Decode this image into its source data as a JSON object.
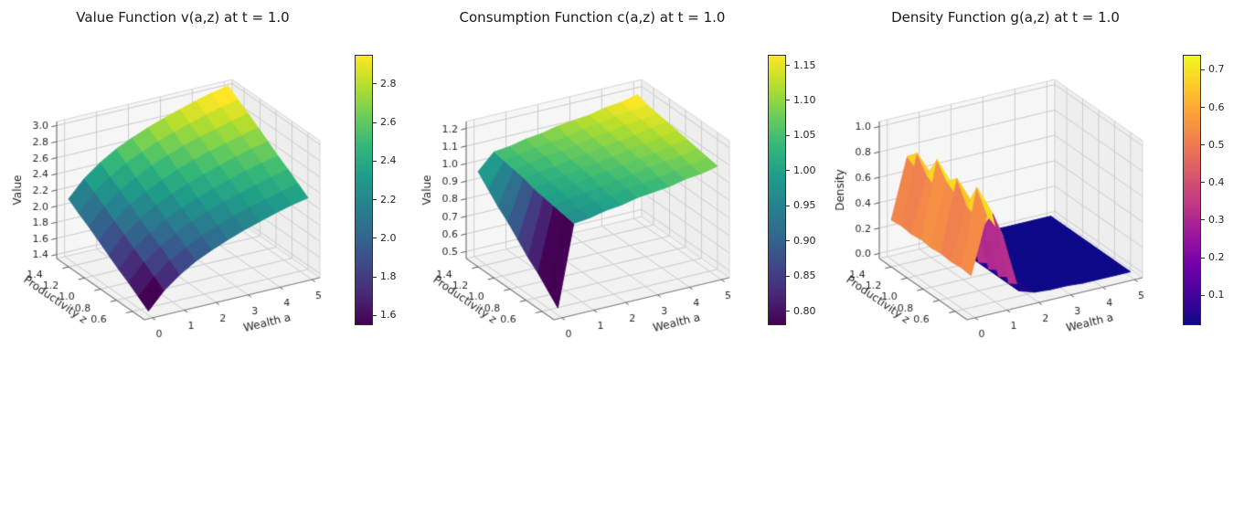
{
  "figure": {
    "background": "#ffffff"
  },
  "colormaps": {
    "viridis": [
      "#440154",
      "#482878",
      "#3e4989",
      "#31688e",
      "#26828e",
      "#1f9e89",
      "#35b779",
      "#6dcd59",
      "#b4de2c",
      "#fde725"
    ],
    "plasma": [
      "#0d0887",
      "#46039f",
      "#7201a8",
      "#9c179e",
      "#bd3786",
      "#d8576b",
      "#ed7953",
      "#fb9f3a",
      "#fdca26",
      "#f0f921"
    ]
  },
  "chart_data": [
    {
      "type": "surface",
      "title": "Value Function v(a,z) at t = 1.0",
      "xlabel": "Wealth a",
      "ylabel": "Productivity z",
      "zlabel": "Value",
      "colormap": "viridis",
      "grid": true,
      "xlim": [
        -0.25,
        5.25
      ],
      "ylim": [
        0.45,
        1.55
      ],
      "zlim": [
        1.35,
        3.05
      ],
      "xticks": {
        "values": [
          0,
          1,
          2,
          3,
          4,
          5
        ],
        "labels": [
          "0",
          "1",
          "2",
          "3",
          "4",
          "5"
        ]
      },
      "yticks": {
        "values": [
          0.6,
          0.8,
          1.0,
          1.2,
          1.4
        ],
        "labels": [
          "0.6",
          "0.8",
          "1.0",
          "1.2",
          "1.4"
        ]
      },
      "zticks": {
        "values": [
          1.4,
          1.6,
          1.8,
          2.0,
          2.2,
          2.4,
          2.6,
          2.8,
          3.0
        ],
        "labels": [
          "1.4",
          "1.6",
          "1.8",
          "2.0",
          "2.2",
          "2.4",
          "2.6",
          "2.8",
          "3.0"
        ]
      },
      "colorbar": {
        "vmin": 1.55,
        "vmax": 2.95,
        "ticks": [
          {
            "value": 1.6,
            "label": "1.6"
          },
          {
            "value": 1.8,
            "label": "1.8"
          },
          {
            "value": 2.0,
            "label": "2.0"
          },
          {
            "value": 2.2,
            "label": "2.2"
          },
          {
            "value": 2.4,
            "label": "2.4"
          },
          {
            "value": 2.6,
            "label": "2.6"
          },
          {
            "value": 2.8,
            "label": "2.8"
          }
        ]
      },
      "surface": {
        "a": [
          0,
          0.5,
          1,
          1.5,
          2,
          2.5,
          3,
          3.5,
          4,
          4.5,
          5
        ],
        "z": [
          0.5,
          0.625,
          0.75,
          0.875,
          1.0,
          1.125,
          1.25,
          1.375,
          1.5
        ],
        "values": [
          [
            1.4,
            1.61,
            1.76,
            1.88,
            1.97,
            2.05,
            2.12,
            2.18,
            2.24,
            2.29,
            2.33
          ],
          [
            1.49,
            1.7,
            1.85,
            1.96,
            2.06,
            2.14,
            2.21,
            2.27,
            2.32,
            2.37,
            2.42
          ],
          [
            1.58,
            1.79,
            1.94,
            2.05,
            2.15,
            2.23,
            2.3,
            2.36,
            2.41,
            2.46,
            2.51
          ],
          [
            1.66,
            1.87,
            2.02,
            2.14,
            2.23,
            2.31,
            2.38,
            2.44,
            2.5,
            2.55,
            2.59
          ],
          [
            1.75,
            1.96,
            2.11,
            2.23,
            2.32,
            2.4,
            2.47,
            2.53,
            2.59,
            2.64,
            2.68
          ],
          [
            1.84,
            2.05,
            2.2,
            2.31,
            2.41,
            2.49,
            2.56,
            2.62,
            2.67,
            2.72,
            2.77
          ],
          [
            1.93,
            2.14,
            2.29,
            2.4,
            2.5,
            2.58,
            2.65,
            2.71,
            2.76,
            2.81,
            2.86
          ],
          [
            2.01,
            2.22,
            2.37,
            2.49,
            2.58,
            2.66,
            2.73,
            2.79,
            2.85,
            2.9,
            2.94
          ],
          [
            2.1,
            2.31,
            2.46,
            2.58,
            2.67,
            2.75,
            2.82,
            2.88,
            2.94,
            2.99,
            3.03
          ]
        ]
      }
    },
    {
      "type": "surface",
      "title": "Consumption Function c(a,z) at t = 1.0",
      "xlabel": "Wealth a",
      "ylabel": "Productivity z",
      "zlabel": "Value",
      "colormap": "viridis",
      "grid": true,
      "xlim": [
        -0.25,
        5.25
      ],
      "ylim": [
        0.45,
        1.55
      ],
      "zlim": [
        0.46,
        1.24
      ],
      "xticks": {
        "values": [
          0,
          1,
          2,
          3,
          4,
          5
        ],
        "labels": [
          "0",
          "1",
          "2",
          "3",
          "4",
          "5"
        ]
      },
      "yticks": {
        "values": [
          0.6,
          0.8,
          1.0,
          1.2,
          1.4
        ],
        "labels": [
          "0.6",
          "0.8",
          "1.0",
          "1.2",
          "1.4"
        ]
      },
      "zticks": {
        "values": [
          0.5,
          0.6,
          0.7,
          0.8,
          0.9,
          1.0,
          1.1,
          1.2
        ],
        "labels": [
          "0.5",
          "0.6",
          "0.7",
          "0.8",
          "0.9",
          "1.0",
          "1.1",
          "1.2"
        ]
      },
      "colorbar": {
        "vmin": 0.78,
        "vmax": 1.165,
        "ticks": [
          {
            "value": 0.8,
            "label": "0.80"
          },
          {
            "value": 0.85,
            "label": "0.85"
          },
          {
            "value": 0.9,
            "label": "0.90"
          },
          {
            "value": 0.95,
            "label": "0.95"
          },
          {
            "value": 1.0,
            "label": "1.00"
          },
          {
            "value": 1.05,
            "label": "1.05"
          },
          {
            "value": 1.1,
            "label": "1.10"
          },
          {
            "value": 1.15,
            "label": "1.15"
          }
        ]
      },
      "surface": {
        "a": [
          0,
          0.5,
          1,
          1.5,
          2,
          2.5,
          3,
          3.5,
          4,
          4.5,
          5
        ],
        "z": [
          0.5,
          0.625,
          0.75,
          0.875,
          1.0,
          1.125,
          1.25,
          1.375,
          1.5
        ],
        "values": [
          [
            0.5,
            0.96,
            0.97,
            0.99,
            1.0,
            1.02,
            1.03,
            1.04,
            1.06,
            1.07,
            1.09
          ],
          [
            0.56,
            0.97,
            0.98,
            1.0,
            1.01,
            1.03,
            1.04,
            1.05,
            1.07,
            1.08,
            1.1
          ],
          [
            0.62,
            0.98,
            1.0,
            1.01,
            1.02,
            1.04,
            1.05,
            1.07,
            1.08,
            1.09,
            1.11
          ],
          [
            0.67,
            0.99,
            1.01,
            1.02,
            1.04,
            1.05,
            1.06,
            1.08,
            1.09,
            1.11,
            1.12
          ],
          [
            0.73,
            1.0,
            1.02,
            1.03,
            1.05,
            1.06,
            1.07,
            1.09,
            1.1,
            1.12,
            1.13
          ],
          [
            0.79,
            1.02,
            1.03,
            1.04,
            1.06,
            1.07,
            1.09,
            1.1,
            1.11,
            1.13,
            1.14
          ],
          [
            0.84,
            1.03,
            1.04,
            1.06,
            1.07,
            1.08,
            1.1,
            1.11,
            1.13,
            1.14,
            1.15
          ],
          [
            0.9,
            1.04,
            1.05,
            1.07,
            1.08,
            1.09,
            1.11,
            1.12,
            1.14,
            1.15,
            1.16
          ],
          [
            0.96,
            1.05,
            1.06,
            1.08,
            1.09,
            1.11,
            1.12,
            1.13,
            1.15,
            1.16,
            1.18
          ]
        ]
      }
    },
    {
      "type": "surface",
      "title": "Density Function g(a,z) at t = 1.0",
      "xlabel": "Wealth a",
      "ylabel": "Productivity z",
      "zlabel": "Density",
      "colormap": "plasma",
      "grid": true,
      "xlim": [
        -0.25,
        5.25
      ],
      "ylim": [
        0.45,
        1.55
      ],
      "zlim": [
        -0.04,
        1.04
      ],
      "xticks": {
        "values": [
          0,
          1,
          2,
          3,
          4,
          5
        ],
        "labels": [
          "0",
          "1",
          "2",
          "3",
          "4",
          "5"
        ]
      },
      "yticks": {
        "values": [
          0.6,
          0.8,
          1.0,
          1.2,
          1.4
        ],
        "labels": [
          "0.6",
          "0.8",
          "1.0",
          "1.2",
          "1.4"
        ]
      },
      "zticks": {
        "values": [
          0.0,
          0.2,
          0.4,
          0.6,
          0.8,
          1.0
        ],
        "labels": [
          "0.0",
          "0.2",
          "0.4",
          "0.6",
          "0.8",
          "1.0"
        ]
      },
      "colorbar": {
        "vmin": 0.02,
        "vmax": 0.74,
        "ticks": [
          {
            "value": 0.1,
            "label": "0.1"
          },
          {
            "value": 0.2,
            "label": "0.2"
          },
          {
            "value": 0.3,
            "label": "0.3"
          },
          {
            "value": 0.4,
            "label": "0.4"
          },
          {
            "value": 0.5,
            "label": "0.5"
          },
          {
            "value": 0.6,
            "label": "0.6"
          },
          {
            "value": 0.7,
            "label": "0.7"
          }
        ]
      },
      "surface": {
        "a": [
          0,
          0.5,
          1,
          1.5,
          2,
          2.5,
          3,
          3.5,
          4,
          4.5,
          5
        ],
        "z": [
          0.5,
          0.625,
          0.75,
          0.875,
          1.0,
          1.125,
          1.25,
          1.375,
          1.5
        ],
        "values": [
          [
            0.27,
            0.72,
            0.52,
            0.06,
            0.02,
            0.01,
            0.01,
            0.0,
            0.0,
            0.0,
            0.0
          ],
          [
            0.28,
            0.88,
            0.64,
            0.06,
            0.02,
            0.01,
            0.01,
            0.0,
            0.0,
            0.0,
            0.0
          ],
          [
            0.27,
            0.68,
            0.49,
            0.06,
            0.02,
            0.01,
            0.01,
            0.0,
            0.0,
            0.0,
            0.0
          ],
          [
            0.28,
            0.84,
            0.61,
            0.06,
            0.02,
            0.01,
            0.01,
            0.0,
            0.0,
            0.0,
            0.0
          ],
          [
            0.27,
            0.76,
            0.55,
            0.06,
            0.02,
            0.01,
            0.01,
            0.0,
            0.0,
            0.0,
            0.0
          ],
          [
            0.28,
            0.88,
            0.64,
            0.06,
            0.02,
            0.01,
            0.01,
            0.0,
            0.0,
            0.0,
            0.0
          ],
          [
            0.27,
            0.7,
            0.5,
            0.06,
            0.02,
            0.01,
            0.01,
            0.0,
            0.0,
            0.0,
            0.0
          ],
          [
            0.28,
            0.82,
            0.6,
            0.06,
            0.02,
            0.01,
            0.01,
            0.0,
            0.0,
            0.0,
            0.0
          ],
          [
            0.27,
            0.74,
            0.54,
            0.06,
            0.02,
            0.01,
            0.01,
            0.0,
            0.0,
            0.0,
            0.0
          ]
        ]
      }
    }
  ]
}
